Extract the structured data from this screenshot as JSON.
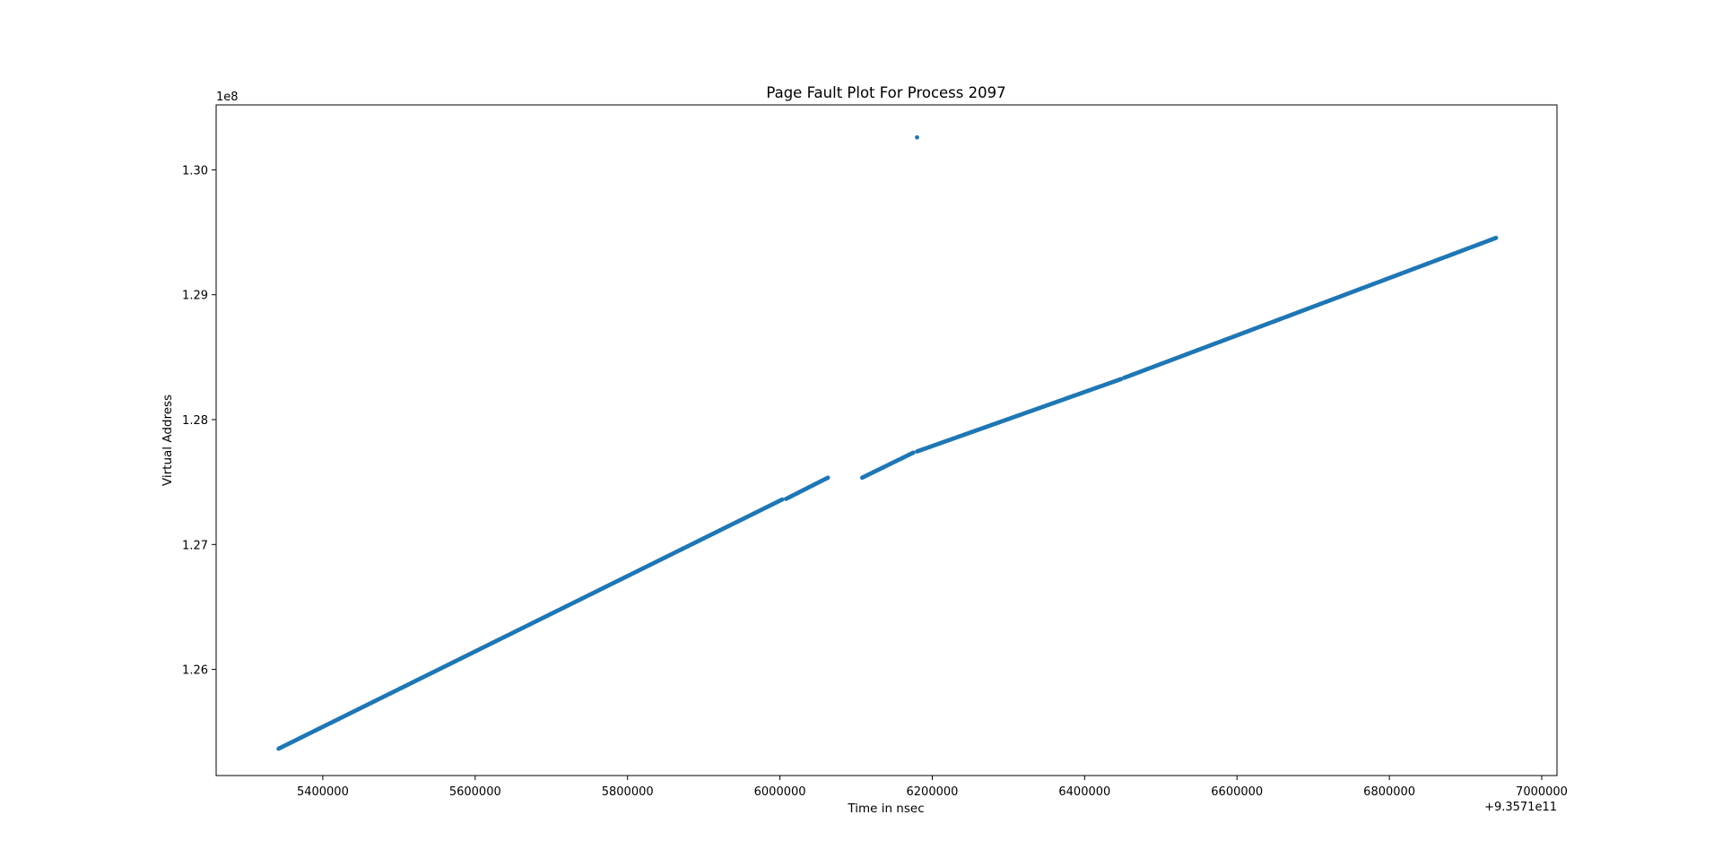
{
  "chart_data": {
    "type": "scatter",
    "title": "Page Fault Plot For Process 2097",
    "xlabel": "Time in nsec",
    "ylabel": "Virtual Address",
    "x_offset_label": "+9.3571e11",
    "y_scale_label": "1e8",
    "x_offset": 935710000000,
    "y_scale": 100000000,
    "xlim": [
      5260000,
      7020000
    ],
    "ylim": [
      1.2515,
      1.3052
    ],
    "x_ticks": [
      5400000,
      5600000,
      5800000,
      6000000,
      6200000,
      6400000,
      6600000,
      6800000,
      7000000
    ],
    "x_tick_labels": [
      "5400000",
      "5600000",
      "5800000",
      "6000000",
      "6200000",
      "6400000",
      "6600000",
      "6800000",
      "7000000"
    ],
    "y_ticks": [
      1.26,
      1.27,
      1.28,
      1.29,
      1.3
    ],
    "y_tick_labels": [
      "1.26",
      "1.27",
      "1.28",
      "1.29",
      "1.30"
    ],
    "grid": false,
    "marker_color": "#1f77b4",
    "series": [
      {
        "segments": [
          {
            "x": [
              5342000,
              6003000
            ],
            "y": [
              1.25365,
              1.2736
            ],
            "count": 420
          },
          {
            "x": [
              6008000,
              6063000
            ],
            "y": [
              1.27365,
              1.27535
            ],
            "count": 40
          },
          {
            "x": [
              6108000,
              6175000
            ],
            "y": [
              1.27535,
              1.27735
            ],
            "count": 45
          },
          {
            "x": [
              6180000,
              6448000
            ],
            "y": [
              1.27745,
              1.28325
            ],
            "count": 180
          },
          {
            "x": [
              6452000,
              6940000
            ],
            "y": [
              1.28335,
              1.29455
            ],
            "count": 320
          }
        ],
        "outliers": [
          {
            "x": 6180000,
            "y": 1.3026
          }
        ]
      }
    ]
  }
}
